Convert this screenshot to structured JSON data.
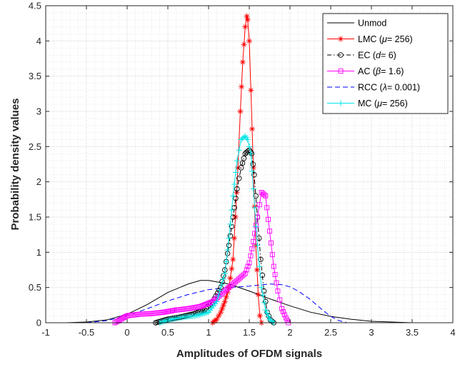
{
  "chart_data": {
    "type": "line",
    "xlabel": "Amplitudes of OFDM signals",
    "ylabel": "Probability density values",
    "xlim": [
      -1,
      4
    ],
    "ylim": [
      0,
      4.5
    ],
    "xticks": [
      -1,
      -0.5,
      0,
      0.5,
      1,
      1.5,
      2,
      2.5,
      3,
      3.5,
      4
    ],
    "xtick_labels": [
      "-1",
      "-0.5",
      "0",
      "0.5",
      "1",
      "1.5",
      "2",
      "2.5",
      "3",
      "3.5",
      "4"
    ],
    "yticks": [
      0,
      0.5,
      1,
      1.5,
      2,
      2.5,
      3,
      3.5,
      4,
      4.5
    ],
    "ytick_labels": [
      "0",
      "0.5",
      "1",
      "1.5",
      "2",
      "2.5",
      "3",
      "3.5",
      "4",
      "4.5"
    ],
    "grid": "major and minor, dotted",
    "legend_position": "top-right",
    "series": [
      {
        "name": "Unmod",
        "legend_text": [
          {
            "t": "Unmod"
          }
        ],
        "color": "#000000",
        "dash": "solid",
        "marker": "none",
        "x": [
          -0.75,
          -0.5,
          -0.25,
          0,
          0.25,
          0.5,
          0.75,
          0.9,
          1.0,
          1.25,
          1.5,
          1.75,
          2.0,
          2.25,
          2.5,
          2.75,
          3.0,
          3.25,
          3.5
        ],
        "y": [
          0.0,
          0.01,
          0.04,
          0.12,
          0.26,
          0.43,
          0.55,
          0.6,
          0.6,
          0.55,
          0.45,
          0.34,
          0.24,
          0.15,
          0.09,
          0.05,
          0.02,
          0.01,
          0.0
        ]
      },
      {
        "name": "RCC (λ= 0.001)",
        "legend_text": [
          {
            "t": "RCC ("
          },
          {
            "t": "λ",
            "i": true
          },
          {
            "t": "= 0.001)"
          }
        ],
        "color": "#0000ff",
        "dash": "dashed",
        "marker": "none",
        "x": [
          -0.5,
          -0.25,
          0,
          0.25,
          0.5,
          0.75,
          1.0,
          1.25,
          1.5,
          1.75,
          1.9,
          2.0,
          2.1,
          2.25,
          2.4,
          2.5,
          2.6,
          2.7
        ],
        "y": [
          0.0,
          0.03,
          0.1,
          0.2,
          0.31,
          0.4,
          0.47,
          0.5,
          0.52,
          0.55,
          0.54,
          0.51,
          0.45,
          0.33,
          0.18,
          0.09,
          0.03,
          0.0
        ]
      },
      {
        "name": "LMC (μ= 256)",
        "legend_text": [
          {
            "t": "LMC ("
          },
          {
            "t": "μ",
            "i": true
          },
          {
            "t": "= 256)"
          }
        ],
        "color": "#ff0000",
        "dash": "solid",
        "marker": "asterisk",
        "x": [
          1.05,
          1.1,
          1.15,
          1.2,
          1.25,
          1.3,
          1.33,
          1.36,
          1.39,
          1.42,
          1.45,
          1.47,
          1.48,
          1.5,
          1.52,
          1.55,
          1.58,
          1.61,
          1.63,
          1.65
        ],
        "y": [
          0.0,
          0.05,
          0.15,
          0.3,
          0.5,
          0.9,
          1.5,
          2.2,
          3.0,
          3.7,
          4.2,
          4.35,
          4.3,
          4.0,
          3.3,
          2.2,
          1.1,
          0.4,
          0.1,
          0.0
        ]
      },
      {
        "name": "EC (d= 6)",
        "legend_text": [
          {
            "t": "EC ("
          },
          {
            "t": "d",
            "i": true
          },
          {
            "t": "= 6)"
          }
        ],
        "color": "#000000",
        "dash": "dashdot",
        "marker": "circle",
        "x": [
          0.35,
          0.5,
          0.65,
          0.8,
          0.95,
          1.05,
          1.15,
          1.2,
          1.25,
          1.3,
          1.35,
          1.4,
          1.45,
          1.5,
          1.53,
          1.56,
          1.6,
          1.64,
          1.68,
          1.72,
          1.76,
          1.8
        ],
        "y": [
          0.0,
          0.05,
          0.08,
          0.12,
          0.18,
          0.3,
          0.5,
          0.75,
          1.1,
          1.5,
          1.9,
          2.2,
          2.4,
          2.45,
          2.4,
          2.1,
          1.5,
          0.9,
          0.45,
          0.15,
          0.04,
          0.0
        ]
      },
      {
        "name": "AC (β= 1.6)",
        "legend_text": [
          {
            "t": "AC ("
          },
          {
            "t": "β",
            "i": true
          },
          {
            "t": "= 1.6)"
          }
        ],
        "color": "#ff00ff",
        "dash": "solid",
        "marker": "square",
        "x": [
          -0.15,
          0,
          0.15,
          0.3,
          0.45,
          0.6,
          0.75,
          0.9,
          1.05,
          1.15,
          1.25,
          1.35,
          1.45,
          1.5,
          1.55,
          1.6,
          1.65,
          1.7,
          1.75,
          1.8,
          1.85,
          1.9,
          1.95,
          1.98
        ],
        "y": [
          0.0,
          0.1,
          0.12,
          0.13,
          0.15,
          0.18,
          0.2,
          0.23,
          0.3,
          0.4,
          0.5,
          0.6,
          0.7,
          0.85,
          1.15,
          1.5,
          1.85,
          1.8,
          1.3,
          0.8,
          0.45,
          0.2,
          0.07,
          0.0
        ]
      },
      {
        "name": "MC (μ= 256)",
        "legend_text": [
          {
            "t": "MC ("
          },
          {
            "t": "μ",
            "i": true
          },
          {
            "t": "= 256)"
          }
        ],
        "color": "#00e5e5",
        "dash": "solid",
        "marker": "plus",
        "x": [
          0.4,
          0.55,
          0.7,
          0.85,
          1.0,
          1.1,
          1.2,
          1.25,
          1.3,
          1.35,
          1.4,
          1.45,
          1.48,
          1.52,
          1.55,
          1.6,
          1.65,
          1.7,
          1.75,
          1.8
        ],
        "y": [
          0.0,
          0.05,
          0.08,
          0.1,
          0.15,
          0.3,
          0.7,
          1.2,
          1.8,
          2.3,
          2.6,
          2.65,
          2.6,
          2.4,
          1.9,
          1.1,
          0.5,
          0.18,
          0.05,
          0.0
        ]
      }
    ],
    "legend_order": [
      "Unmod",
      "LMC (μ= 256)",
      "EC (d= 6)",
      "AC (β= 1.6)",
      "RCC (λ= 0.001)",
      "MC (μ= 256)"
    ]
  }
}
